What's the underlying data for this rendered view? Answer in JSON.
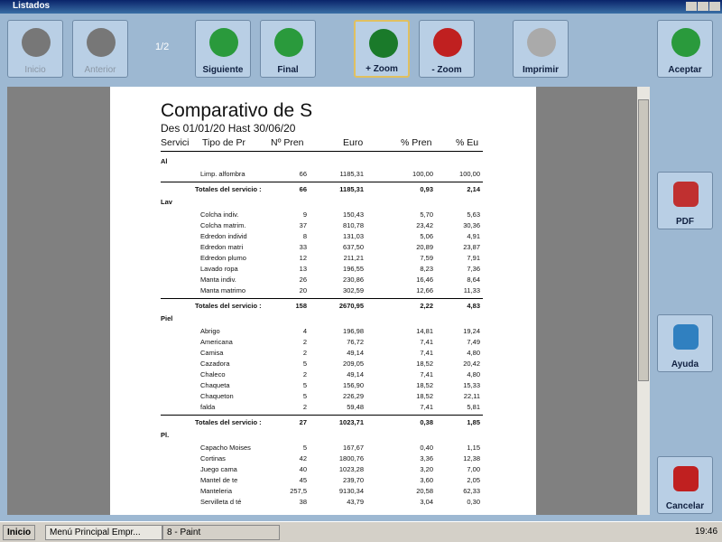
{
  "window": {
    "title": "Listados"
  },
  "toolbar": {
    "buttons": [
      {
        "label": "Inicio"
      },
      {
        "label": "Anterior"
      },
      {
        "label": "Siguiente"
      },
      {
        "label": "Final"
      },
      {
        "label": "+ Zoom"
      },
      {
        "label": "- Zoom"
      },
      {
        "label": "Imprimir"
      },
      {
        "label": "Aceptar"
      }
    ],
    "page_indicator": "1/2"
  },
  "side_buttons": [
    {
      "label": "PDF"
    },
    {
      "label": "Ayuda"
    },
    {
      "label": "Cancelar"
    }
  ],
  "report": {
    "title": "Comparativo de S",
    "subtitle": "Des  01/01/20  Hast 30/06/20",
    "columns": [
      "Servici",
      "Tipo de Pr",
      "Nº Pren",
      "Euro",
      "% Pren",
      "% Eu"
    ],
    "groups": [
      {
        "name": "Al",
        "rows": [
          [
            "Limp. alfombra",
            "66",
            "1185,31",
            "100,00",
            "100,00"
          ]
        ],
        "total": [
          "Totales del servicio :",
          "66",
          "1185,31",
          "0,93",
          "2,14"
        ]
      },
      {
        "name": "Lav",
        "rows": [
          [
            "Colcha indiv.",
            "9",
            "150,43",
            "5,70",
            "5,63"
          ],
          [
            "Colcha matrim.",
            "37",
            "810,78",
            "23,42",
            "30,36"
          ],
          [
            "Edredon individ",
            "8",
            "131,03",
            "5,06",
            "4,91"
          ],
          [
            "Edredon matri",
            "33",
            "637,50",
            "20,89",
            "23,87"
          ],
          [
            "Edredon plumo",
            "12",
            "211,21",
            "7,59",
            "7,91"
          ],
          [
            "Lavado ropa",
            "13",
            "196,55",
            "8,23",
            "7,36"
          ],
          [
            "Manta indiv.",
            "26",
            "230,86",
            "16,46",
            "8,64"
          ],
          [
            "Manta matrimo",
            "20",
            "302,59",
            "12,66",
            "11,33"
          ]
        ],
        "total": [
          "Totales del servicio :",
          "158",
          "2670,95",
          "2,22",
          "4,83"
        ]
      },
      {
        "name": "Piel",
        "rows": [
          [
            "Abrigo",
            "4",
            "196,98",
            "14,81",
            "19,24"
          ],
          [
            "Americana",
            "2",
            "76,72",
            "7,41",
            "7,49"
          ],
          [
            "Camisa",
            "2",
            "49,14",
            "7,41",
            "4,80"
          ],
          [
            "Cazadora",
            "5",
            "209,05",
            "18,52",
            "20,42"
          ],
          [
            "Chaleco",
            "2",
            "49,14",
            "7,41",
            "4,80"
          ],
          [
            "Chaqueta",
            "5",
            "156,90",
            "18,52",
            "15,33"
          ],
          [
            "Chaqueton",
            "5",
            "226,29",
            "18,52",
            "22,11"
          ],
          [
            "falda",
            "2",
            "59,48",
            "7,41",
            "5,81"
          ]
        ],
        "total": [
          "Totales del servicio :",
          "27",
          "1023,71",
          "0,38",
          "1,85"
        ]
      },
      {
        "name": "Pl.",
        "rows": [
          [
            "Capacho Moises",
            "5",
            "167,67",
            "0,40",
            "1,15"
          ],
          [
            "Cortinas",
            "42",
            "1800,76",
            "3,36",
            "12,38"
          ],
          [
            "Juego cama",
            "40",
            "1023,28",
            "3,20",
            "7,00"
          ],
          [
            "Mantel de te",
            "45",
            "239,70",
            "3,60",
            "2,05"
          ],
          [
            "Manteleria",
            "257,5",
            "9130,34",
            "20,58",
            "62,33"
          ],
          [
            "Servilleta d té",
            "38",
            "43,79",
            "3,04",
            "0,30"
          ]
        ]
      }
    ]
  },
  "taskbar": {
    "start": "Inicio",
    "tasks": [
      "Menú Principal   Empr...",
      "8 - Paint"
    ],
    "clock": "19:46"
  }
}
